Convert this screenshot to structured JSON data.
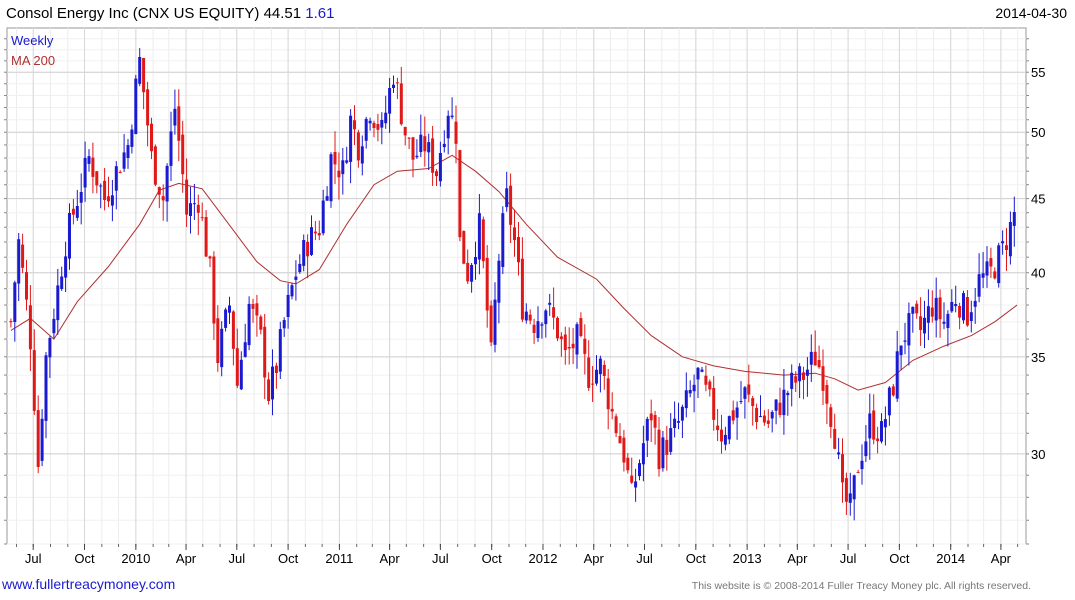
{
  "header": {
    "title": "Consol Energy Inc (CNX US EQUITY) 44.51",
    "change": "1.61",
    "date": "2014-04-30"
  },
  "legend": {
    "weekly": "Weekly",
    "ma": "MA 200"
  },
  "footer": {
    "site": "www.fullertreacymoney.com",
    "copyright": "This website is © 2008-2014 Fuller Treacy Money plc. All rights reserved."
  },
  "colors": {
    "up": "#1a1ad0",
    "down": "#e01818",
    "ma": "#b03030",
    "grid": "#e0e0e0"
  },
  "chart_data": {
    "type": "candlestick",
    "title": "Consol Energy Inc (CNX US EQUITY) 44.51",
    "y_scale": "log",
    "ylim": [
      26,
      59
    ],
    "y_ticks": [
      30,
      35,
      40,
      45,
      50,
      55
    ],
    "x_range": [
      "2009-05-15",
      "2014-05-16"
    ],
    "grid": true,
    "legend_position": "top-left",
    "x_ticks": [
      {
        "date": "2009-07-01",
        "label": "Jul"
      },
      {
        "date": "2009-10-01",
        "label": "Oct"
      },
      {
        "date": "2010-01-01",
        "label": "2010"
      },
      {
        "date": "2010-04-01",
        "label": "Apr"
      },
      {
        "date": "2010-07-01",
        "label": "Jul"
      },
      {
        "date": "2010-10-01",
        "label": "Oct"
      },
      {
        "date": "2011-01-01",
        "label": "2011"
      },
      {
        "date": "2011-04-01",
        "label": "Apr"
      },
      {
        "date": "2011-07-01",
        "label": "Jul"
      },
      {
        "date": "2011-10-01",
        "label": "Oct"
      },
      {
        "date": "2012-01-01",
        "label": "2012"
      },
      {
        "date": "2012-04-01",
        "label": "Apr"
      },
      {
        "date": "2012-07-01",
        "label": "Jul"
      },
      {
        "date": "2012-10-01",
        "label": "Oct"
      },
      {
        "date": "2013-01-01",
        "label": "2013"
      },
      {
        "date": "2013-04-01",
        "label": "Apr"
      },
      {
        "date": "2013-07-01",
        "label": "Jul"
      },
      {
        "date": "2013-10-01",
        "label": "Oct"
      },
      {
        "date": "2014-01-01",
        "label": "2014"
      },
      {
        "date": "2014-04-01",
        "label": "Apr"
      }
    ],
    "weekly_close_anchors": [
      [
        "2009-05-22",
        37
      ],
      [
        "2009-06-05",
        42
      ],
      [
        "2009-06-26",
        36
      ],
      [
        "2009-07-10",
        29.5
      ],
      [
        "2009-07-24",
        35
      ],
      [
        "2009-08-14",
        39
      ],
      [
        "2009-08-28",
        42
      ],
      [
        "2009-09-25",
        46
      ],
      [
        "2009-10-09",
        48
      ],
      [
        "2009-11-06",
        45
      ],
      [
        "2009-11-27",
        47
      ],
      [
        "2009-12-18",
        49
      ],
      [
        "2010-01-08",
        56
      ],
      [
        "2010-01-29",
        48
      ],
      [
        "2010-02-19",
        45
      ],
      [
        "2010-03-12",
        52
      ],
      [
        "2010-04-02",
        44
      ],
      [
        "2010-04-23",
        45
      ],
      [
        "2010-05-14",
        40
      ],
      [
        "2010-05-28",
        35
      ],
      [
        "2010-06-18",
        38
      ],
      [
        "2010-07-02",
        33.5
      ],
      [
        "2010-07-23",
        38
      ],
      [
        "2010-08-13",
        36
      ],
      [
        "2010-08-27",
        33
      ],
      [
        "2010-09-10",
        34.5
      ],
      [
        "2010-09-24",
        37
      ],
      [
        "2010-10-15",
        40
      ],
      [
        "2010-11-05",
        42
      ],
      [
        "2010-11-26",
        43
      ],
      [
        "2010-12-17",
        48
      ],
      [
        "2011-01-07",
        47
      ],
      [
        "2011-01-21",
        51
      ],
      [
        "2011-02-04",
        49
      ],
      [
        "2011-02-25",
        52
      ],
      [
        "2011-03-18",
        50
      ],
      [
        "2011-04-08",
        55
      ],
      [
        "2011-04-29",
        50
      ],
      [
        "2011-05-13",
        48
      ],
      [
        "2011-06-03",
        49
      ],
      [
        "2011-06-24",
        47
      ],
      [
        "2011-07-15",
        52
      ],
      [
        "2011-07-29",
        50
      ],
      [
        "2011-08-05",
        42
      ],
      [
        "2011-08-19",
        40
      ],
      [
        "2011-09-09",
        43
      ],
      [
        "2011-09-30",
        35
      ],
      [
        "2011-10-14",
        41
      ],
      [
        "2011-10-28",
        45
      ],
      [
        "2011-11-11",
        42
      ],
      [
        "2011-11-25",
        38
      ],
      [
        "2011-12-16",
        37
      ],
      [
        "2012-01-06",
        38
      ],
      [
        "2012-01-27",
        36.5
      ],
      [
        "2012-02-10",
        35
      ],
      [
        "2012-03-02",
        36
      ],
      [
        "2012-03-23",
        34
      ],
      [
        "2012-04-13",
        34.5
      ],
      [
        "2012-05-04",
        32
      ],
      [
        "2012-05-25",
        30
      ],
      [
        "2012-06-08",
        28
      ],
      [
        "2012-06-29",
        30.5
      ],
      [
        "2012-07-13",
        32
      ],
      [
        "2012-07-27",
        30
      ],
      [
        "2012-08-10",
        30.5
      ],
      [
        "2012-08-31",
        31.5
      ],
      [
        "2012-09-21",
        33
      ],
      [
        "2012-10-05",
        34
      ],
      [
        "2012-10-26",
        32.5
      ],
      [
        "2012-11-16",
        31
      ],
      [
        "2012-12-07",
        32
      ],
      [
        "2012-12-28",
        33
      ],
      [
        "2013-01-18",
        32
      ],
      [
        "2013-02-08",
        31.5
      ],
      [
        "2013-03-01",
        32.5
      ],
      [
        "2013-03-22",
        33.5
      ],
      [
        "2013-04-12",
        34
      ],
      [
        "2013-05-03",
        35
      ],
      [
        "2013-05-17",
        34
      ],
      [
        "2013-06-07",
        31
      ],
      [
        "2013-06-21",
        28
      ],
      [
        "2013-07-05",
        27.5
      ],
      [
        "2013-07-19",
        29.5
      ],
      [
        "2013-08-09",
        31.5
      ],
      [
        "2013-08-30",
        31
      ],
      [
        "2013-09-20",
        33.5
      ],
      [
        "2013-10-04",
        36
      ],
      [
        "2013-10-25",
        37
      ],
      [
        "2013-11-08",
        36.5
      ],
      [
        "2013-11-29",
        38
      ],
      [
        "2013-12-20",
        37
      ],
      [
        "2014-01-10",
        38.5
      ],
      [
        "2014-01-31",
        37.5
      ],
      [
        "2014-02-21",
        39.5
      ],
      [
        "2014-03-14",
        40
      ],
      [
        "2014-04-04",
        41.5
      ],
      [
        "2014-04-18",
        43
      ],
      [
        "2014-04-30",
        44.51
      ]
    ],
    "ma200_anchors": [
      [
        "2009-05-22",
        36.5
      ],
      [
        "2009-06-26",
        37.2
      ],
      [
        "2009-08-07",
        36.0
      ],
      [
        "2009-09-18",
        38.2
      ],
      [
        "2009-11-13",
        40.4
      ],
      [
        "2010-01-08",
        43.2
      ],
      [
        "2010-02-12",
        45.6
      ],
      [
        "2010-03-19",
        46.1
      ],
      [
        "2010-04-30",
        45.7
      ],
      [
        "2010-06-11",
        43.5
      ],
      [
        "2010-08-06",
        40.7
      ],
      [
        "2010-09-17",
        39.5
      ],
      [
        "2010-10-15",
        39.3
      ],
      [
        "2010-11-26",
        40.2
      ],
      [
        "2011-01-14",
        43.2
      ],
      [
        "2011-03-04",
        46.0
      ],
      [
        "2011-04-15",
        47.0
      ],
      [
        "2011-06-10",
        47.2
      ],
      [
        "2011-07-22",
        48.2
      ],
      [
        "2011-09-02",
        47.0
      ],
      [
        "2011-10-14",
        45.5
      ],
      [
        "2011-12-02",
        43.2
      ],
      [
        "2012-01-27",
        41.0
      ],
      [
        "2012-04-06",
        39.6
      ],
      [
        "2012-05-25",
        37.8
      ],
      [
        "2012-07-13",
        36.2
      ],
      [
        "2012-09-07",
        35.0
      ],
      [
        "2012-11-02",
        34.5
      ],
      [
        "2012-12-28",
        34.2
      ],
      [
        "2013-03-08",
        34.0
      ],
      [
        "2013-05-03",
        34.1
      ],
      [
        "2013-06-07",
        33.8
      ],
      [
        "2013-07-19",
        33.2
      ],
      [
        "2013-09-06",
        33.6
      ],
      [
        "2013-10-25",
        34.8
      ],
      [
        "2013-12-20",
        35.6
      ],
      [
        "2014-02-07",
        36.2
      ],
      [
        "2014-03-21",
        37.0
      ],
      [
        "2014-04-30",
        38.0
      ]
    ]
  }
}
